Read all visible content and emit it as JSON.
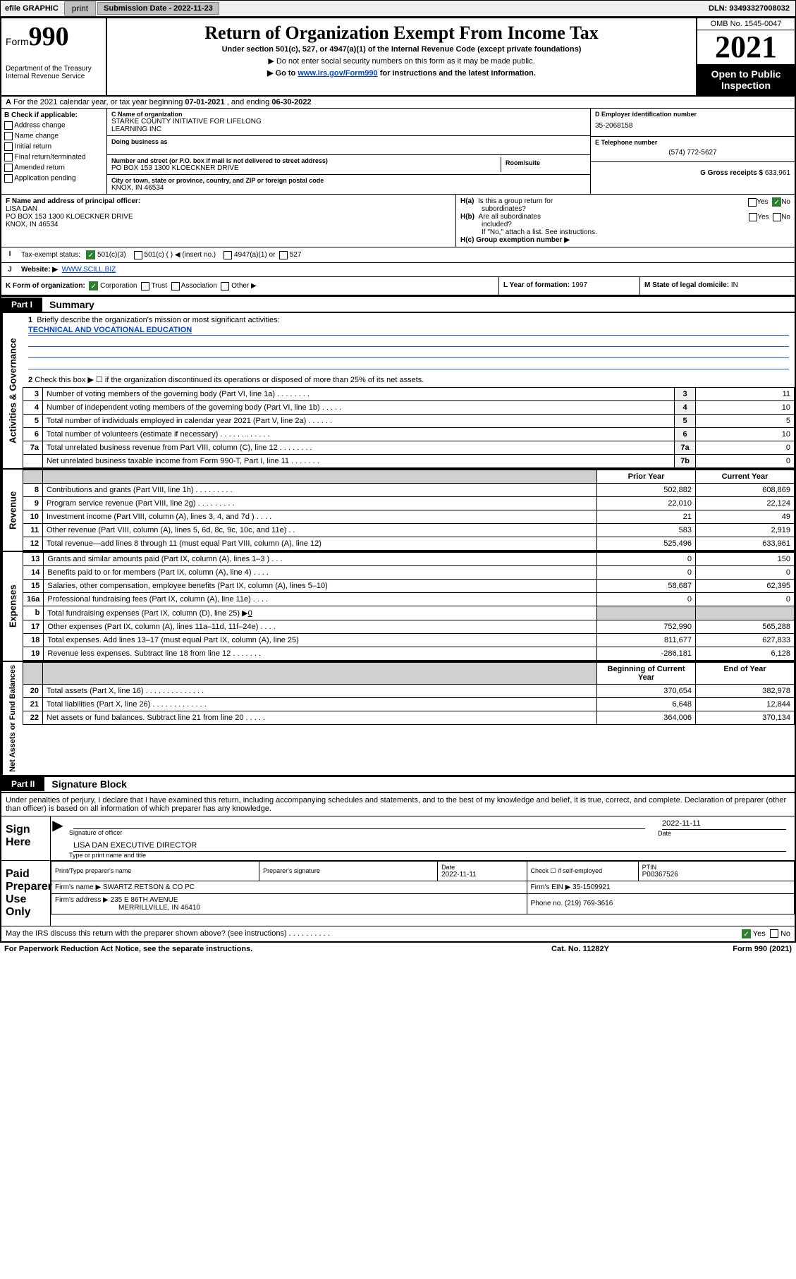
{
  "topbar": {
    "efile": "efile GRAPHIC",
    "print": "print",
    "sub_label": "Submission Date - ",
    "sub_date": "2022-11-23",
    "dln_label": "DLN: ",
    "dln": "93493327008032"
  },
  "header": {
    "form_word": "Form",
    "form_num": "990",
    "dept": "Department of the Treasury",
    "irs": "Internal Revenue Service",
    "title": "Return of Organization Exempt From Income Tax",
    "sub": "Under section 501(c), 527, or 4947(a)(1) of the Internal Revenue Code (except private foundations)",
    "note1": "▶ Do not enter social security numbers on this form as it may be made public.",
    "note2_pre": "▶ Go to ",
    "note2_link": "www.irs.gov/Form990",
    "note2_post": " for instructions and the latest information.",
    "omb": "OMB No. 1545-0047",
    "year": "2021",
    "inspect1": "Open to Public",
    "inspect2": "Inspection"
  },
  "rowA": {
    "A": "A",
    "text_pre": "For the 2021 calendar year, or tax year beginning ",
    "begin": "07-01-2021",
    "mid": " , and ending ",
    "end": "06-30-2022"
  },
  "B": {
    "label": "B Check if applicable:",
    "items": [
      "Address change",
      "Name change",
      "Initial return",
      "Final return/terminated",
      "Amended return",
      "Application pending"
    ]
  },
  "C": {
    "name_lbl": "C Name of organization",
    "name1": "STARKE COUNTY INITIATIVE FOR LIFELONG",
    "name2": "LEARNING INC",
    "dba_lbl": "Doing business as",
    "addr_lbl": "Number and street (or P.O. box if mail is not delivered to street address)",
    "room_lbl": "Room/suite",
    "addr": "PO BOX 153 1300 KLOECKNER DRIVE",
    "city_lbl": "City or town, state or province, country, and ZIP or foreign postal code",
    "city": "KNOX, IN  46534"
  },
  "D": {
    "lbl": "D Employer identification number",
    "val": "35-2068158"
  },
  "E": {
    "lbl": "E Telephone number",
    "val": "(574) 772-5627"
  },
  "G": {
    "lbl": "G Gross receipts $ ",
    "val": "633,961"
  },
  "F": {
    "lbl": "F Name and address of principal officer:",
    "name": "LISA DAN",
    "addr": "PO BOX 153 1300 KLOECKNER DRIVE",
    "city": "KNOX, IN  46534"
  },
  "H": {
    "a": "H(a)  Is this a group return for subordinates?",
    "b": "H(b)  Are all subordinates included?",
    "b_note": "If \"No,\" attach a list. See instructions.",
    "c": "H(c)  Group exemption number ▶",
    "yes": "Yes",
    "no": "No"
  },
  "I": {
    "lbl": "Tax-exempt status:",
    "o1": "501(c)(3)",
    "o2": "501(c) (   ) ◀ (insert no.)",
    "o3": "4947(a)(1) or",
    "o4": "527"
  },
  "J": {
    "lbl": "Website: ▶",
    "val": "WWW.SCILL.BIZ"
  },
  "K": {
    "lbl": "K Form of organization:",
    "o1": "Corporation",
    "o2": "Trust",
    "o3": "Association",
    "o4": "Other ▶"
  },
  "L": {
    "lbl": "L Year of formation: ",
    "val": "1997"
  },
  "M": {
    "lbl": "M State of legal domicile: ",
    "val": "IN"
  },
  "part1": {
    "tab": "Part I",
    "title": "Summary",
    "line1_lbl": "1",
    "line1": "Briefly describe the organization's mission or most significant activities:",
    "mission": "TECHNICAL AND VOCATIONAL EDUCATION",
    "line2_lbl": "2",
    "line2": "Check this box ▶ ☐  if the organization discontinued its operations or disposed of more than 25% of its net assets."
  },
  "sidebar": {
    "ag": "Activities & Governance",
    "rev": "Revenue",
    "exp": "Expenses",
    "na": "Net Assets or Fund Balances"
  },
  "gov_lines": [
    {
      "n": "3",
      "d": "Number of voting members of the governing body (Part VI, line 1a)   .   .   .   .   .   .   .   .",
      "b": "3",
      "v": "11"
    },
    {
      "n": "4",
      "d": "Number of independent voting members of the governing body (Part VI, line 1b)   .   .   .   .   .",
      "b": "4",
      "v": "10"
    },
    {
      "n": "5",
      "d": "Total number of individuals employed in calendar year 2021 (Part V, line 2a)   .   .   .   .   .   .",
      "b": "5",
      "v": "5"
    },
    {
      "n": "6",
      "d": "Total number of volunteers (estimate if necessary)   .   .   .   .   .   .   .   .   .   .   .   .",
      "b": "6",
      "v": "10"
    },
    {
      "n": "7a",
      "d": "Total unrelated business revenue from Part VIII, column (C), line 12   .   .   .   .   .   .   .   .",
      "b": "7a",
      "v": "0"
    },
    {
      "n": "",
      "d": "Net unrelated business taxable income from Form 990-T, Part I, line 11   .   .   .   .   .   .   .",
      "b": "7b",
      "v": "0"
    }
  ],
  "rev_hdr": {
    "c1": "Prior Year",
    "c2": "Current Year"
  },
  "rev_lines": [
    {
      "n": "8",
      "d": "Contributions and grants (Part VIII, line 1h)   .   .   .   .   .   .   .   .   .",
      "p": "502,882",
      "c": "608,869"
    },
    {
      "n": "9",
      "d": "Program service revenue (Part VIII, line 2g)   .   .   .   .   .   .   .   .   .",
      "p": "22,010",
      "c": "22,124"
    },
    {
      "n": "10",
      "d": "Investment income (Part VIII, column (A), lines 3, 4, and 7d )   .   .   .   .",
      "p": "21",
      "c": "49"
    },
    {
      "n": "11",
      "d": "Other revenue (Part VIII, column (A), lines 5, 6d, 8c, 9c, 10c, and 11e)   .   .",
      "p": "583",
      "c": "2,919"
    },
    {
      "n": "12",
      "d": "Total revenue—add lines 8 through 11 (must equal Part VIII, column (A), line 12)",
      "p": "525,496",
      "c": "633,961"
    }
  ],
  "exp_lines": [
    {
      "n": "13",
      "d": "Grants and similar amounts paid (Part IX, column (A), lines 1–3 )   .   .   .",
      "p": "0",
      "c": "150"
    },
    {
      "n": "14",
      "d": "Benefits paid to or for members (Part IX, column (A), line 4)   .   .   .   .",
      "p": "0",
      "c": "0"
    },
    {
      "n": "15",
      "d": "Salaries, other compensation, employee benefits (Part IX, column (A), lines 5–10)",
      "p": "58,687",
      "c": "62,395"
    },
    {
      "n": "16a",
      "d": "Professional fundraising fees (Part IX, column (A), line 11e)   .   .   .   .",
      "p": "0",
      "c": "0"
    }
  ],
  "line16b": {
    "n": "b",
    "d": "Total fundraising expenses (Part IX, column (D), line 25) ▶",
    "v": "0"
  },
  "exp_lines2": [
    {
      "n": "17",
      "d": "Other expenses (Part IX, column (A), lines 11a–11d, 11f–24e)   .   .   .   .",
      "p": "752,990",
      "c": "565,288"
    },
    {
      "n": "18",
      "d": "Total expenses. Add lines 13–17 (must equal Part IX, column (A), line 25)",
      "p": "811,677",
      "c": "627,833"
    },
    {
      "n": "19",
      "d": "Revenue less expenses. Subtract line 18 from line 12   .   .   .   .   .   .   .",
      "p": "-286,181",
      "c": "6,128"
    }
  ],
  "na_hdr": {
    "c1": "Beginning of Current Year",
    "c2": "End of Year"
  },
  "na_lines": [
    {
      "n": "20",
      "d": "Total assets (Part X, line 16)   .   .   .   .   .   .   .   .   .   .   .   .   .   .",
      "p": "370,654",
      "c": "382,978"
    },
    {
      "n": "21",
      "d": "Total liabilities (Part X, line 26)   .   .   .   .   .   .   .   .   .   .   .   .   .",
      "p": "6,648",
      "c": "12,844"
    },
    {
      "n": "22",
      "d": "Net assets or fund balances. Subtract line 21 from line 20   .   .   .   .   .",
      "p": "364,006",
      "c": "370,134"
    }
  ],
  "part2": {
    "tab": "Part II",
    "title": "Signature Block",
    "decl": "Under penalties of perjury, I declare that I have examined this return, including accompanying schedules and statements, and to the best of my knowledge and belief, it is true, correct, and complete. Declaration of preparer (other than officer) is based on all information of which preparer has any knowledge."
  },
  "sign": {
    "here": "Sign Here",
    "sig_date": "2022-11-11",
    "sig_lbl": "Signature of officer",
    "date_lbl": "Date",
    "name": "LISA DAN  EXECUTIVE DIRECTOR",
    "name_lbl": "Type or print name and title"
  },
  "paid": {
    "lbl1": "Paid",
    "lbl2": "Preparer",
    "lbl3": "Use Only",
    "h1": "Print/Type preparer's name",
    "h2": "Preparer's signature",
    "h3": "Date",
    "h3v": "2022-11-11",
    "h4": "Check ☐ if self-employed",
    "h5": "PTIN",
    "h5v": "P00367526",
    "firm_lbl": "Firm's name     ▶",
    "firm": "SWARTZ RETSON & CO PC",
    "ein_lbl": "Firm's EIN ▶",
    "ein": "35-1509921",
    "addr_lbl": "Firm's address ▶",
    "addr1": "235 E 86TH AVENUE",
    "addr2": "MERRILLVILLE, IN  46410",
    "phone_lbl": "Phone no. ",
    "phone": "(219) 769-3616",
    "discuss": "May the IRS discuss this return with the preparer shown above? (see instructions)   .   .   .   .   .   .   .   .   .   .",
    "yes": "Yes",
    "no": "No"
  },
  "footer": {
    "left": "For Paperwork Reduction Act Notice, see the separate instructions.",
    "mid": "Cat. No. 11282Y",
    "right": "Form 990 (2021)"
  }
}
